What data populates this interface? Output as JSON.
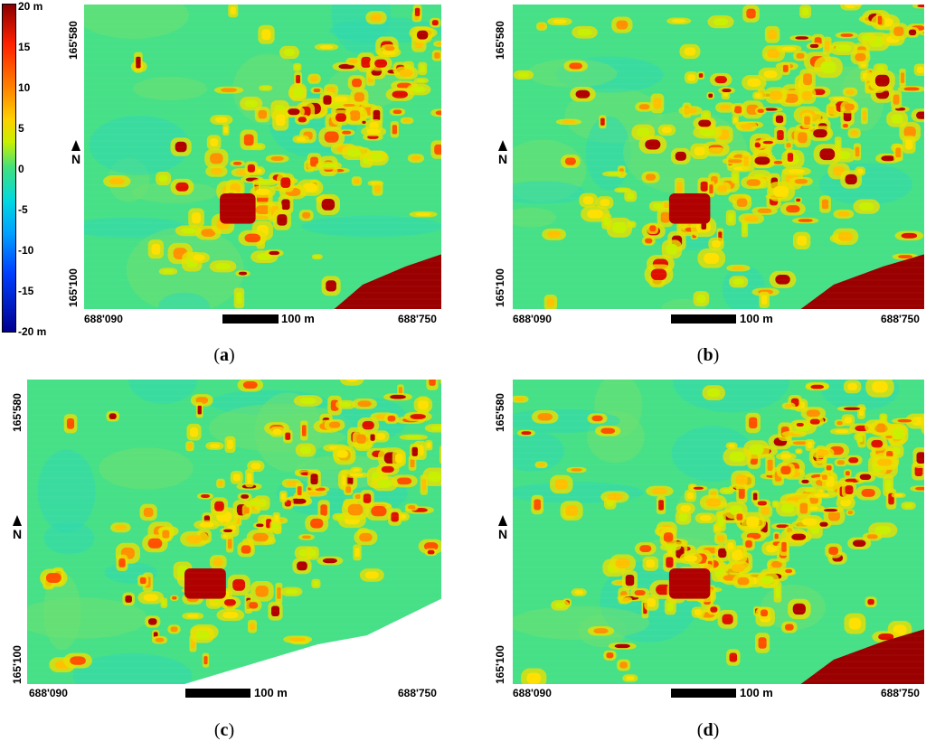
{
  "colorbar": {
    "top_label": "20 m",
    "bottom_label": "-20 m",
    "ticks": [
      "15",
      "10",
      "5",
      "0",
      "-5",
      "-10",
      "-15"
    ],
    "range": [
      -20,
      20
    ],
    "colors": [
      "#00008f",
      "#0050ff",
      "#00c8ff",
      "#40e080",
      "#d0f000",
      "#ffc000",
      "#ff4000",
      "#8a0000"
    ]
  },
  "panels": [
    {
      "caption_letter": "a",
      "x_left": "688'090",
      "x_right": "688'750",
      "y_top": "165'580",
      "y_bottom": "165'100",
      "north": "N",
      "scale": "100 m"
    },
    {
      "caption_letter": "b",
      "x_left": "688'090",
      "x_right": "688'750",
      "y_top": "165'580",
      "y_bottom": "165'100",
      "north": "N",
      "scale": "100 m"
    },
    {
      "caption_letter": "c",
      "x_left": "688'090",
      "x_right": "688'750",
      "y_top": "165'580",
      "y_bottom": "165'100",
      "north": "N",
      "scale": "100 m"
    },
    {
      "caption_letter": "d",
      "x_left": "688'090",
      "x_right": "688'750",
      "y_top": "165'580",
      "y_bottom": "165'100",
      "north": "N",
      "scale": "100 m"
    }
  ]
}
